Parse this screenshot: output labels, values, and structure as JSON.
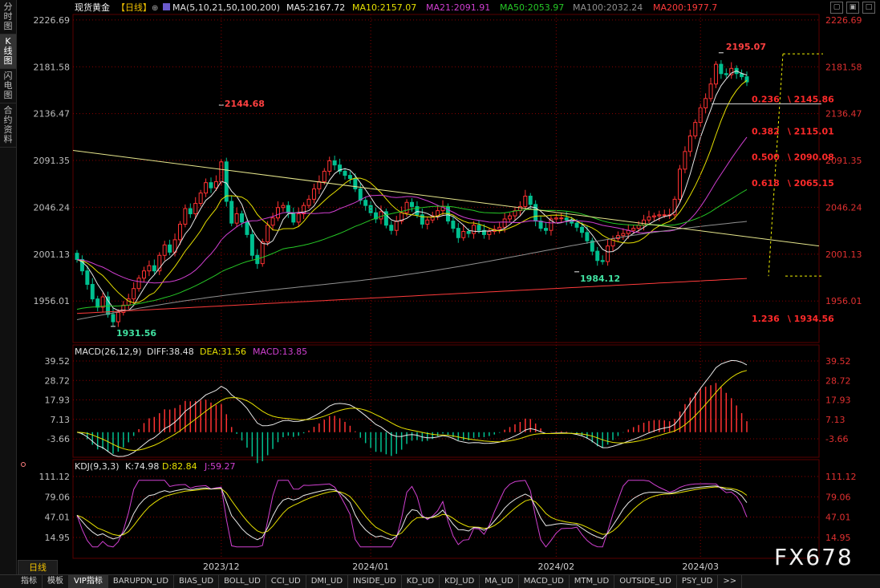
{
  "sidebar": {
    "tabs": [
      {
        "label": "分时图",
        "active": false
      },
      {
        "label": "K线图",
        "active": true
      },
      {
        "label": "闪电图",
        "active": false
      },
      {
        "label": "合约资料",
        "active": false
      }
    ]
  },
  "header": {
    "instrument": "现货黄金",
    "period_tag": "【日线】",
    "ma_params": "MA(5,10,21,50,100,200)",
    "ma": [
      {
        "text": "MA5:2167.72",
        "color": "#e8e8e8"
      },
      {
        "text": "MA10:2157.07",
        "color": "#e6e000"
      },
      {
        "text": "MA21:2091.91",
        "color": "#d13fd1"
      },
      {
        "text": "MA50:2053.97",
        "color": "#26c826"
      },
      {
        "text": "MA100:2032.24",
        "color": "#909090"
      },
      {
        "text": "MA200:1977.7",
        "color": "#ff3b3b"
      }
    ]
  },
  "colors": {
    "up": "#ff3232",
    "down": "#00c090",
    "grid": "#8b0000",
    "axis_text_left": "#bdbdbd",
    "axis_text_right": "#e03030",
    "trend_line": "#e6e68c",
    "fib": "#ff2a2a"
  },
  "main_panel": {
    "y_labels": [
      "2226.69",
      "2181.58",
      "2136.47",
      "2091.35",
      "2046.24",
      "2001.13",
      "1956.01"
    ],
    "annotations": {
      "high_2195": "2195.07",
      "high_2144": "2144.68",
      "low_1984": "1984.12",
      "low_1931": "1931.56"
    },
    "fib_levels": [
      {
        "label": "0.236",
        "value": "2145.86"
      },
      {
        "label": "0.382",
        "value": "2115.01"
      },
      {
        "label": "0.500",
        "value": "2090.08"
      },
      {
        "label": "0.618",
        "value": "2065.15"
      },
      {
        "label": "1.236",
        "value": "1934.56"
      }
    ]
  },
  "macd_panel": {
    "title": "MACD(26,12,9)",
    "diff": "DIFF:38.48",
    "dea": "DEA:31.56",
    "macd": "MACD:13.85",
    "y_labels": [
      "39.52",
      "28.72",
      "17.93",
      "7.13",
      "-3.66"
    ]
  },
  "kdj_panel": {
    "title": "KDJ(9,3,3)",
    "k": "K:74.98",
    "d": "D:82.84",
    "j": "J:59.27",
    "y_labels": [
      "111.12",
      "79.06",
      "47.01",
      "14.95"
    ]
  },
  "x_axis": {
    "labels": [
      "2023/12",
      "2024/01",
      "2024/02",
      "2024/03"
    ]
  },
  "period_button": "日线",
  "watermark": "FX678",
  "toolbar": {
    "items": [
      "指标",
      "模板",
      "VIP指标",
      "BARUPDN_UD",
      "BIAS_UD",
      "BOLL_UD",
      "CCI_UD",
      "DMI_UD",
      "INSIDE_UD",
      "KD_UD",
      "KDJ_UD",
      "MA_UD",
      "MACD_UD",
      "MTM_UD",
      "OUTSIDE_UD",
      "PSY_UD",
      ">>"
    ],
    "active_index": 2
  },
  "chart_data": {
    "type": "candlestick",
    "title": "现货黄金【日线】",
    "ylim": [
      1916,
      2232
    ],
    "y_ticks": [
      2226.69,
      2181.58,
      2136.47,
      2091.35,
      2046.24,
      2001.13,
      1956.01
    ],
    "x_ticks": [
      "2023/12",
      "2024/01",
      "2024/02",
      "2024/03"
    ],
    "closes": [
      1996,
      1985,
      1972,
      1958,
      1950,
      1960,
      1943,
      1936,
      1945,
      1952,
      1958,
      1968,
      1978,
      1985,
      1990,
      1985,
      2000,
      2010,
      2003,
      2015,
      2030,
      2045,
      2040,
      2050,
      2060,
      2070,
      2065,
      2071,
      2090,
      2052,
      2031,
      2040,
      2032,
      2020,
      2000,
      1992,
      2013,
      2029,
      2036,
      2046,
      2048,
      2041,
      2032,
      2040,
      2048,
      2054,
      2064,
      2071,
      2081,
      2091,
      2087,
      2081,
      2077,
      2074,
      2064,
      2053,
      2048,
      2041,
      2035,
      2042,
      2029,
      2024,
      2033,
      2041,
      2051,
      2047,
      2039,
      2030,
      2034,
      2038,
      2043,
      2047,
      2033,
      2026,
      2017,
      2023,
      2021,
      2029,
      2024,
      2020,
      2023,
      2025,
      2027,
      2035,
      2038,
      2043,
      2047,
      2057,
      2049,
      2033,
      2026,
      2024,
      2035,
      2036,
      2036,
      2034,
      2031,
      2027,
      2022,
      2014,
      2004,
      1995,
      1994,
      2009,
      2016,
      2019,
      2021,
      2024,
      2026,
      2029,
      2034,
      2037,
      2038,
      2039,
      2039,
      2039,
      2054,
      2083,
      2100,
      2115,
      2128,
      2142,
      2151,
      2165,
      2184,
      2175,
      2174,
      2180,
      2175,
      2172,
      2167
    ],
    "ma5_last": 2167.72,
    "ma10_last": 2157.07,
    "ma21_last": 2091.91,
    "ma50_last": 2053.97,
    "ma100_last": 2032.24,
    "ma200_last": 1977.7
  }
}
